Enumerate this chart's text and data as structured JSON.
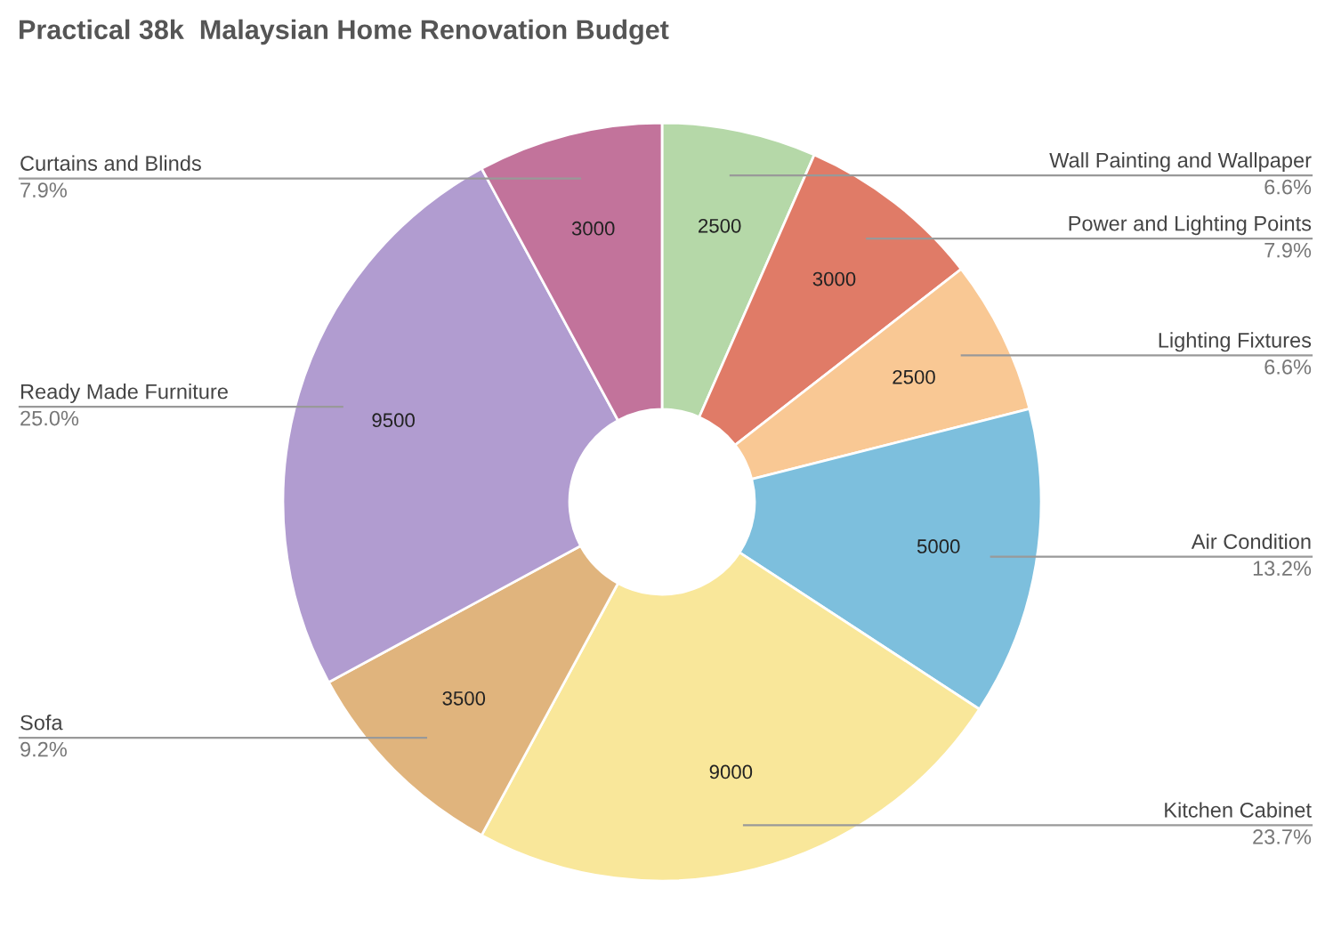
{
  "chart_data": {
    "type": "donut",
    "title": "Practical 38k  Malaysian Home Renovation Budget",
    "categories": [
      "Wall Painting and Wallpaper",
      "Power and Lighting Points",
      "Lighting Fixtures",
      "Air Condition",
      "Kitchen Cabinet",
      "Sofa",
      "Ready Made Furniture",
      "Curtains and Blinds"
    ],
    "values": [
      2500,
      3000,
      2500,
      5000,
      9000,
      3500,
      9500,
      3000
    ],
    "colors": [
      "#b5d8a8",
      "#e07b67",
      "#f9c894",
      "#7dbfdd",
      "#f9e79a",
      "#e0b47d",
      "#b19cd0",
      "#c2739b"
    ],
    "data_labels": true,
    "annotations": [
      "6.6%",
      "7.9%",
      "6.6%",
      "13.2%",
      "23.7%",
      "9.2%",
      "25.0%",
      "7.9%"
    ]
  }
}
